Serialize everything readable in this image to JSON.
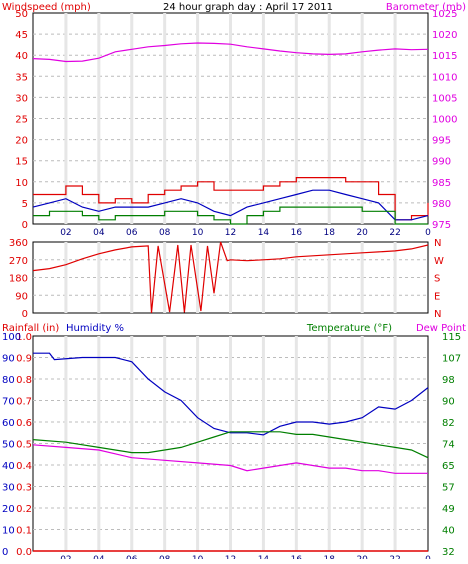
{
  "window_title": "24 hour graph day : April 17 2011",
  "colors": {
    "windspeed": "#e00000",
    "gust": "#e00000",
    "wind_avg": "#0000c0",
    "wind_low": "#007f00",
    "barometer": "#e000e0",
    "direction": "#e00000",
    "rainfall": "#e00000",
    "humidity": "#0000c0",
    "temperature": "#007f00",
    "dew_point": "#e000e0",
    "grid": "#bcbcbc",
    "frame": "#000000"
  },
  "chart_data": [
    {
      "type": "line",
      "title": "24 hour graph day : April 17 2011",
      "left_axis": {
        "label": "Windspeed (mph)",
        "ylim": [
          0,
          50
        ],
        "ticks": [
          "0",
          "5",
          "10",
          "15",
          "20",
          "25",
          "30",
          "35",
          "40",
          "45",
          "50"
        ]
      },
      "right_axis": {
        "label": "Barometer (mb)",
        "ylim": [
          975,
          1025
        ],
        "ticks": [
          "975",
          "980",
          "985",
          "990",
          "995",
          "1000",
          "1005",
          "1010",
          "1015",
          "1020",
          "1025"
        ]
      },
      "x_ticks": [
        "02",
        "04",
        "06",
        "08",
        "10",
        "12",
        "14",
        "16",
        "18",
        "20",
        "22",
        "0"
      ],
      "grid": true,
      "series": [
        {
          "name": "Windspeed (mph)",
          "axis": "left",
          "values": [
            [
              0,
              7
            ],
            [
              1,
              7
            ],
            [
              2,
              9
            ],
            [
              3,
              7
            ],
            [
              4,
              5
            ],
            [
              5,
              6
            ],
            [
              6,
              5
            ],
            [
              7,
              7
            ],
            [
              8,
              8
            ],
            [
              9,
              9
            ],
            [
              10,
              10
            ],
            [
              11,
              8
            ],
            [
              12,
              8
            ],
            [
              13,
              8
            ],
            [
              14,
              9
            ],
            [
              15,
              10
            ],
            [
              16,
              11
            ],
            [
              17,
              11
            ],
            [
              18,
              11
            ],
            [
              19,
              10
            ],
            [
              20,
              10
            ],
            [
              21,
              7
            ],
            [
              22,
              1
            ],
            [
              23,
              2
            ],
            [
              24,
              5
            ]
          ]
        },
        {
          "name": "Barometer (mb)",
          "axis": "right",
          "values": [
            [
              0,
              1014.2
            ],
            [
              1,
              1014.0
            ],
            [
              2,
              1013.5
            ],
            [
              3,
              1013.6
            ],
            [
              4,
              1014.3
            ],
            [
              5,
              1015.8
            ],
            [
              6,
              1016.4
            ],
            [
              7,
              1017.0
            ],
            [
              8,
              1017.3
            ],
            [
              9,
              1017.7
            ],
            [
              10,
              1017.9
            ],
            [
              11,
              1017.8
            ],
            [
              12,
              1017.6
            ],
            [
              13,
              1017.0
            ],
            [
              14,
              1016.5
            ],
            [
              15,
              1016.0
            ],
            [
              16,
              1015.6
            ],
            [
              17,
              1015.3
            ],
            [
              18,
              1015.2
            ],
            [
              19,
              1015.3
            ],
            [
              20,
              1015.8
            ],
            [
              21,
              1016.2
            ],
            [
              22,
              1016.5
            ],
            [
              23,
              1016.3
            ],
            [
              24,
              1016.4
            ]
          ]
        }
      ],
      "unlabeled_series": [
        {
          "values": [
            [
              0,
              4
            ],
            [
              1,
              5
            ],
            [
              2,
              6
            ],
            [
              3,
              4
            ],
            [
              4,
              3
            ],
            [
              5,
              4
            ],
            [
              6,
              4
            ],
            [
              7,
              4
            ],
            [
              8,
              5
            ],
            [
              9,
              6
            ],
            [
              10,
              5
            ],
            [
              11,
              3
            ],
            [
              12,
              2
            ],
            [
              13,
              4
            ],
            [
              14,
              5
            ],
            [
              15,
              6
            ],
            [
              16,
              7
            ],
            [
              17,
              8
            ],
            [
              18,
              8
            ],
            [
              19,
              7
            ],
            [
              20,
              6
            ],
            [
              21,
              5
            ],
            [
              22,
              1
            ],
            [
              23,
              1
            ],
            [
              24,
              2
            ]
          ]
        },
        {
          "values": [
            [
              0,
              2
            ],
            [
              1,
              3
            ],
            [
              2,
              3
            ],
            [
              3,
              2
            ],
            [
              4,
              1
            ],
            [
              5,
              2
            ],
            [
              6,
              2
            ],
            [
              7,
              2
            ],
            [
              8,
              3
            ],
            [
              9,
              3
            ],
            [
              10,
              2
            ],
            [
              11,
              1
            ],
            [
              12,
              0
            ],
            [
              13,
              2
            ],
            [
              14,
              3
            ],
            [
              15,
              4
            ],
            [
              16,
              4
            ],
            [
              17,
              4
            ],
            [
              18,
              4
            ],
            [
              19,
              4
            ],
            [
              20,
              3
            ],
            [
              21,
              3
            ],
            [
              22,
              0
            ],
            [
              23,
              0
            ],
            [
              24,
              0
            ]
          ]
        }
      ]
    },
    {
      "type": "line",
      "left_axis": {
        "ylim": [
          0,
          360
        ],
        "ticks": [
          "0",
          "90",
          "180",
          "270",
          "360"
        ]
      },
      "right_axis": {
        "ticks": [
          "N",
          "E",
          "S",
          "W",
          "N"
        ]
      },
      "x_ticks": [
        "02",
        "04",
        "06",
        "08",
        "10",
        "12",
        "14",
        "16",
        "18",
        "20",
        "22",
        "0"
      ],
      "grid": true,
      "series": [
        {
          "values": [
            [
              0,
              215
            ],
            [
              1,
              225
            ],
            [
              2,
              245
            ],
            [
              3,
              275
            ],
            [
              4,
              300
            ],
            [
              5,
              320
            ],
            [
              6,
              335
            ],
            [
              7,
              340
            ],
            [
              7.2,
              0
            ],
            [
              7.6,
              340
            ],
            [
              8.3,
              5
            ],
            [
              8.8,
              345
            ],
            [
              9.2,
              3
            ],
            [
              9.6,
              345
            ],
            [
              10.2,
              10
            ],
            [
              10.6,
              340
            ],
            [
              11,
              100
            ],
            [
              11.4,
              360
            ],
            [
              11.8,
              265
            ],
            [
              12,
              270
            ],
            [
              13,
              265
            ],
            [
              14,
              270
            ],
            [
              15,
              275
            ],
            [
              16,
              285
            ],
            [
              17,
              290
            ],
            [
              18,
              295
            ],
            [
              19,
              300
            ],
            [
              20,
              305
            ],
            [
              21,
              310
            ],
            [
              22,
              315
            ],
            [
              23,
              325
            ],
            [
              24,
              345
            ]
          ]
        }
      ]
    },
    {
      "type": "line",
      "left_axis_1": {
        "label": "Rainfall (in)",
        "ylim": [
          0,
          1
        ],
        "ticks": [
          "0.0",
          "0.1",
          "0.2",
          "0.3",
          "0.4",
          "0.5",
          "0.6",
          "0.7",
          "0.8",
          "0.9",
          "1.0"
        ]
      },
      "left_axis_2": {
        "label": "Humidity %",
        "ylim": [
          0,
          100
        ],
        "ticks": [
          "0",
          "10",
          "20",
          "30",
          "40",
          "50",
          "60",
          "70",
          "80",
          "90",
          "100"
        ]
      },
      "right_axis": {
        "label_parts": [
          "Temperature (°F)",
          "Dew Point"
        ],
        "ylim": [
          32,
          115
        ],
        "ticks": [
          "32",
          "40",
          "49",
          "57",
          "65",
          "74",
          "82",
          "90",
          "98",
          "107",
          "115"
        ]
      },
      "x_ticks": [
        "02",
        "04",
        "06",
        "08",
        "10",
        "12",
        "14",
        "16",
        "18",
        "20",
        "22",
        "0"
      ],
      "grid": true,
      "series": [
        {
          "name": "Rainfall (in)",
          "axis": "rain",
          "values": [
            [
              0,
              0
            ],
            [
              24,
              0
            ]
          ]
        },
        {
          "name": "Humidity %",
          "axis": "humidity",
          "values": [
            [
              0,
              92
            ],
            [
              1,
              92
            ],
            [
              1.3,
              89
            ],
            [
              3,
              90
            ],
            [
              5,
              90
            ],
            [
              6,
              88
            ],
            [
              7,
              80
            ],
            [
              8,
              74
            ],
            [
              9,
              70
            ],
            [
              10,
              62
            ],
            [
              11,
              57
            ],
            [
              12,
              55
            ],
            [
              13,
              55
            ],
            [
              14,
              54
            ],
            [
              15,
              58
            ],
            [
              16,
              60
            ],
            [
              17,
              60
            ],
            [
              18,
              59
            ],
            [
              19,
              60
            ],
            [
              20,
              62
            ],
            [
              21,
              67
            ],
            [
              22,
              66
            ],
            [
              23,
              70
            ],
            [
              24,
              76
            ]
          ]
        },
        {
          "name": "Temperature (°F)",
          "axis": "temp",
          "values": [
            [
              0,
              75
            ],
            [
              2,
              74
            ],
            [
              4,
              72
            ],
            [
              5,
              71
            ],
            [
              6,
              70
            ],
            [
              7,
              70
            ],
            [
              8,
              71
            ],
            [
              9,
              72
            ],
            [
              10,
              74
            ],
            [
              11,
              76
            ],
            [
              12,
              78
            ],
            [
              13,
              78
            ],
            [
              14,
              78
            ],
            [
              15,
              78
            ],
            [
              16,
              77
            ],
            [
              17,
              77
            ],
            [
              18,
              76
            ],
            [
              19,
              75
            ],
            [
              20,
              74
            ],
            [
              21,
              73
            ],
            [
              22,
              72
            ],
            [
              23,
              71
            ],
            [
              24,
              68
            ]
          ]
        },
        {
          "name": "Dew Point",
          "axis": "temp",
          "values": [
            [
              0,
              73
            ],
            [
              2,
              72
            ],
            [
              4,
              71
            ],
            [
              6,
              68
            ],
            [
              8,
              67
            ],
            [
              10,
              66
            ],
            [
              12,
              65
            ],
            [
              13,
              63
            ],
            [
              14,
              64
            ],
            [
              15,
              65
            ],
            [
              16,
              66
            ],
            [
              17,
              65
            ],
            [
              18,
              64
            ],
            [
              19,
              64
            ],
            [
              20,
              63
            ],
            [
              21,
              63
            ],
            [
              22,
              62
            ],
            [
              23,
              62
            ],
            [
              24,
              62
            ]
          ]
        }
      ]
    }
  ]
}
